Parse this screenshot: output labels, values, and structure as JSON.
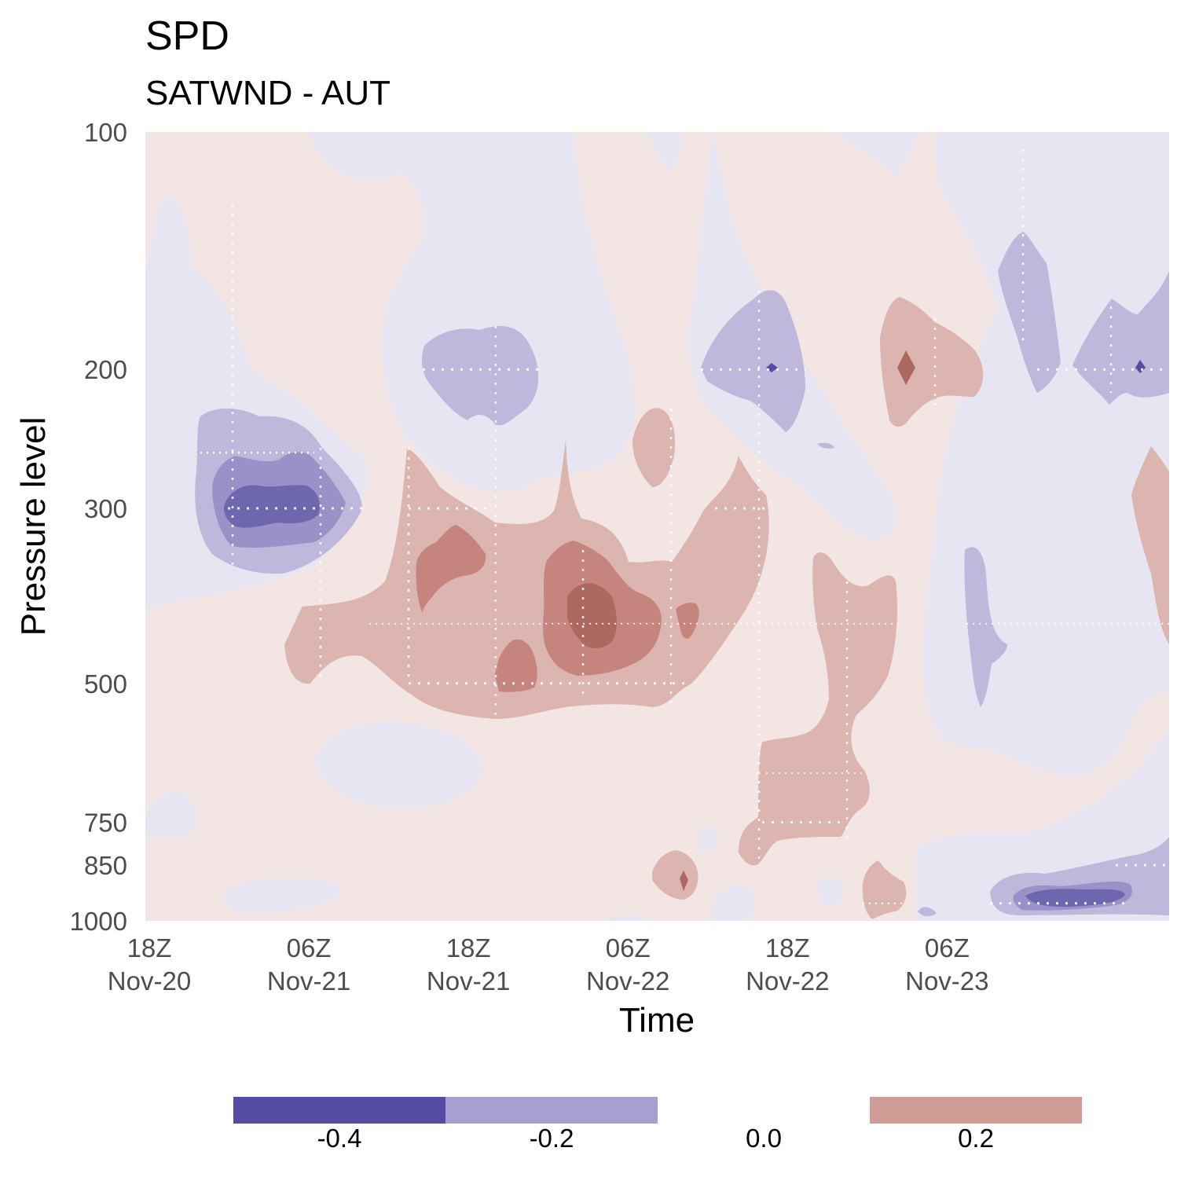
{
  "chart_data": {
    "type": "heatmap",
    "subtype": "filled contour (time vs pressure level)",
    "title": "SPD",
    "subtitle": "SATWND - AUT",
    "xlabel": "Time",
    "ylabel": "Pressure level",
    "y_scale": "log",
    "y_reversed": true,
    "ylim": [
      1000,
      100
    ],
    "y_ticks": [
      {
        "value": 100,
        "label": "100"
      },
      {
        "value": 200,
        "label": "200"
      },
      {
        "value": 300,
        "label": "300"
      },
      {
        "value": 500,
        "label": "500"
      },
      {
        "value": 750,
        "label": "750"
      },
      {
        "value": 850,
        "label": "850"
      },
      {
        "value": 1000,
        "label": "1000"
      }
    ],
    "x_range": [
      "2020-11-20T18:00Z",
      "2020-11-23T23:00Z"
    ],
    "x_ticks": [
      {
        "value": "2020-11-20T18:00Z",
        "line1": "18Z",
        "line2": "Nov-20"
      },
      {
        "value": "2020-11-21T06:00Z",
        "line1": "06Z",
        "line2": "Nov-21"
      },
      {
        "value": "2020-11-21T18:00Z",
        "line1": "18Z",
        "line2": "Nov-21"
      },
      {
        "value": "2020-11-22T06:00Z",
        "line1": "06Z",
        "line2": "Nov-22"
      },
      {
        "value": "2020-11-22T18:00Z",
        "line1": "18Z",
        "line2": "Nov-22"
      },
      {
        "value": "2020-11-23T06:00Z",
        "line1": "06Z",
        "line2": "Nov-23"
      }
    ],
    "grid": false,
    "legend": {
      "placement": "bottom",
      "items": [
        {
          "label": "-0.4",
          "color": "#554aa4"
        },
        {
          "label": "-0.2",
          "color": "#a89fd0"
        },
        {
          "label": "0.0",
          "color": null
        },
        {
          "label": "0.2",
          "color": "#d09d96"
        }
      ]
    },
    "fill_colors": {
      "le_-0.4": "#554aa4",
      "-0.4_-0.3": "#6f66b0",
      "-0.3_-0.2": "#9a91c8",
      "-0.2_-0.1": "#bfb7dc",
      "-0.1_0.0": "#e7e5f1",
      "0.0_0.1": "#f3e5e4",
      "0.1_0.2": "#dcb5b1",
      "0.2_0.3": "#c5857e",
      "0.3_0.4": "#ad6960",
      "ge_0.4": "#a3564e"
    },
    "features": [
      {
        "name": "negative minimum",
        "time": "2020-11-21T01:00Z",
        "pressure": 300,
        "value": -0.45
      },
      {
        "name": "negative minimum",
        "time": "2020-11-21T18:00Z",
        "pressure": 200,
        "value": -0.2
      },
      {
        "name": "negative minimum",
        "time": "2020-11-22T12:00Z",
        "pressure": 200,
        "value": -0.25
      },
      {
        "name": "negative minimum",
        "time": "2020-11-23T10:00Z",
        "pressure": 950,
        "value": -0.35
      },
      {
        "name": "positive maximum",
        "time": "2020-11-22T00:00Z",
        "pressure": 420,
        "value": 0.4
      },
      {
        "name": "positive maximum",
        "time": "2020-11-21T15:00Z",
        "pressure": 370,
        "value": 0.3
      },
      {
        "name": "positive maximum",
        "time": "2020-11-22T22:00Z",
        "pressure": 200,
        "value": 0.3
      },
      {
        "name": "positive region",
        "time": "2020-11-22T16:00Z",
        "pressure": 650,
        "value": 0.15
      }
    ]
  }
}
